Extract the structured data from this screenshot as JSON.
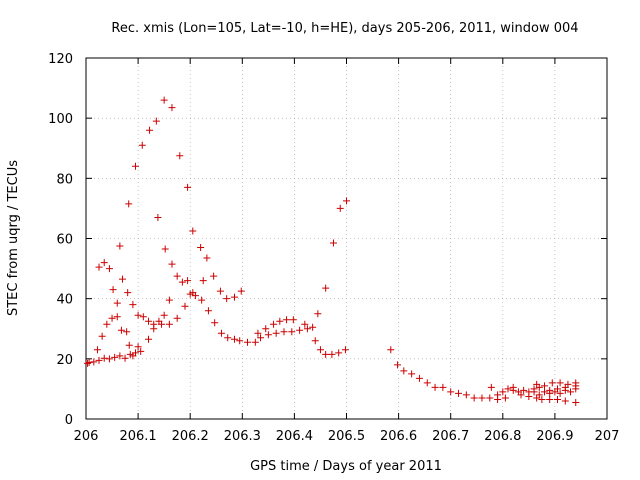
{
  "chart_data": {
    "type": "scatter",
    "title": "Rec. xmis (Lon=105, Lat=-10, h=HE), days 205-206, 2011, window 004",
    "xlabel": "GPS time / Days of year 2011",
    "ylabel": "STEC from uqrg / TECUs",
    "xlim": [
      206,
      207
    ],
    "ylim": [
      0,
      120
    ],
    "xticks": [
      206,
      206.1,
      206.2,
      206.3,
      206.4,
      206.5,
      206.6,
      206.7,
      206.8,
      206.9,
      207
    ],
    "xtick_labels": [
      "206",
      "206.1",
      "206.2",
      "206.3",
      "206.4",
      "206.5",
      "206.6",
      "206.7",
      "206.8",
      "206.9",
      "207"
    ],
    "yticks": [
      0,
      20,
      40,
      60,
      80,
      100,
      120
    ],
    "ytick_labels": [
      "0",
      "20",
      "40",
      "60",
      "80",
      "100",
      "120"
    ],
    "grid": true,
    "marker": "+",
    "color": "#cc0000",
    "points": [
      [
        206.003,
        18.5
      ],
      [
        206.006,
        18.8
      ],
      [
        206.015,
        19.0
      ],
      [
        206.025,
        19.5
      ],
      [
        206.035,
        20.2
      ],
      [
        206.045,
        20.0
      ],
      [
        206.055,
        20.5
      ],
      [
        206.065,
        21.0
      ],
      [
        206.075,
        20.2
      ],
      [
        206.085,
        21.5
      ],
      [
        206.095,
        22.0
      ],
      [
        206.105,
        22.5
      ],
      [
        206.022,
        23.0
      ],
      [
        206.031,
        27.5
      ],
      [
        206.04,
        31.5
      ],
      [
        206.05,
        33.5
      ],
      [
        206.06,
        38.5
      ],
      [
        206.07,
        46.5
      ],
      [
        206.08,
        42.0
      ],
      [
        206.09,
        38.0
      ],
      [
        206.1,
        34.5
      ],
      [
        206.11,
        34.0
      ],
      [
        206.12,
        32.5
      ],
      [
        206.13,
        31.5
      ],
      [
        206.14,
        32.5
      ],
      [
        206.15,
        34.5
      ],
      [
        206.16,
        31.5
      ],
      [
        206.025,
        50.5
      ],
      [
        206.035,
        52.0
      ],
      [
        206.045,
        50.0
      ],
      [
        206.052,
        43.0
      ],
      [
        206.06,
        34.0
      ],
      [
        206.068,
        29.5
      ],
      [
        206.078,
        29.0
      ],
      [
        206.083,
        24.5
      ],
      [
        206.09,
        21.0
      ],
      [
        206.1,
        24.0
      ],
      [
        206.065,
        57.5
      ],
      [
        206.082,
        71.5
      ],
      [
        206.095,
        84.0
      ],
      [
        206.108,
        91.0
      ],
      [
        206.122,
        96.0
      ],
      [
        206.135,
        99.0
      ],
      [
        206.15,
        106.0
      ],
      [
        206.165,
        103.5
      ],
      [
        206.18,
        87.5
      ],
      [
        206.195,
        77.0
      ],
      [
        206.205,
        62.5
      ],
      [
        206.22,
        57.0
      ],
      [
        206.232,
        53.5
      ],
      [
        206.245,
        47.5
      ],
      [
        206.258,
        42.5
      ],
      [
        206.138,
        67.0
      ],
      [
        206.152,
        56.5
      ],
      [
        206.165,
        51.5
      ],
      [
        206.175,
        47.5
      ],
      [
        206.185,
        45.5
      ],
      [
        206.195,
        46.0
      ],
      [
        206.205,
        42.0
      ],
      [
        206.222,
        39.5
      ],
      [
        206.235,
        36.0
      ],
      [
        206.247,
        32.0
      ],
      [
        206.26,
        28.5
      ],
      [
        206.272,
        27.0
      ],
      [
        206.285,
        26.5
      ],
      [
        206.12,
        26.5
      ],
      [
        206.13,
        30.0
      ],
      [
        206.145,
        31.5
      ],
      [
        206.16,
        39.5
      ],
      [
        206.175,
        33.5
      ],
      [
        206.19,
        37.5
      ],
      [
        206.2,
        41.5
      ],
      [
        206.21,
        41.0
      ],
      [
        206.225,
        46.0
      ],
      [
        206.27,
        40.0
      ],
      [
        206.285,
        40.5
      ],
      [
        206.298,
        42.5
      ],
      [
        206.295,
        26.0
      ],
      [
        206.31,
        25.5
      ],
      [
        206.325,
        25.5
      ],
      [
        206.335,
        27.0
      ],
      [
        206.35,
        28.0
      ],
      [
        206.365,
        28.5
      ],
      [
        206.38,
        29.0
      ],
      [
        206.395,
        29.0
      ],
      [
        206.41,
        29.5
      ],
      [
        206.425,
        30.0
      ],
      [
        206.33,
        28.5
      ],
      [
        206.345,
        30.0
      ],
      [
        206.36,
        31.5
      ],
      [
        206.372,
        32.5
      ],
      [
        206.385,
        33.0
      ],
      [
        206.398,
        33.0
      ],
      [
        206.42,
        31.5
      ],
      [
        206.435,
        30.5
      ],
      [
        206.445,
        35.0
      ],
      [
        206.44,
        26.0
      ],
      [
        206.45,
        23.0
      ],
      [
        206.46,
        21.5
      ],
      [
        206.472,
        21.5
      ],
      [
        206.485,
        22.0
      ],
      [
        206.498,
        23.0
      ],
      [
        206.46,
        43.5
      ],
      [
        206.475,
        58.5
      ],
      [
        206.488,
        70.0
      ],
      [
        206.5,
        72.5
      ],
      [
        206.585,
        23.0
      ],
      [
        206.598,
        18.0
      ],
      [
        206.61,
        16.0
      ],
      [
        206.625,
        15.0
      ],
      [
        206.64,
        13.5
      ],
      [
        206.655,
        12.0
      ],
      [
        206.67,
        10.5
      ],
      [
        206.685,
        10.5
      ],
      [
        206.7,
        9.0
      ],
      [
        206.715,
        8.5
      ],
      [
        206.73,
        8.0
      ],
      [
        206.745,
        7.0
      ],
      [
        206.76,
        7.0
      ],
      [
        206.775,
        7.0
      ],
      [
        206.778,
        10.5
      ],
      [
        206.79,
        8.0
      ],
      [
        206.8,
        9.0
      ],
      [
        206.81,
        10.0
      ],
      [
        206.82,
        9.5
      ],
      [
        206.83,
        9.0
      ],
      [
        206.84,
        9.5
      ],
      [
        206.85,
        9.0
      ],
      [
        206.86,
        10.0
      ],
      [
        206.87,
        10.5
      ],
      [
        206.88,
        9.0
      ],
      [
        206.89,
        9.5
      ],
      [
        206.9,
        9.0
      ],
      [
        206.91,
        8.5
      ],
      [
        206.92,
        9.5
      ],
      [
        206.93,
        9.0
      ],
      [
        206.94,
        10.0
      ],
      [
        206.79,
        6.5
      ],
      [
        206.805,
        7.0
      ],
      [
        206.82,
        10.5
      ],
      [
        206.835,
        8.0
      ],
      [
        206.85,
        7.5
      ],
      [
        206.865,
        7.0
      ],
      [
        206.875,
        6.5
      ],
      [
        206.89,
        6.5
      ],
      [
        206.905,
        6.5
      ],
      [
        206.92,
        6.0
      ],
      [
        206.94,
        5.5
      ],
      [
        206.865,
        11.5
      ],
      [
        206.88,
        11.0
      ],
      [
        206.895,
        12.0
      ],
      [
        206.91,
        12.0
      ],
      [
        206.925,
        11.5
      ],
      [
        206.94,
        12.0
      ],
      [
        206.86,
        9.0
      ],
      [
        206.87,
        8.0
      ],
      [
        206.89,
        8.5
      ],
      [
        206.905,
        10.0
      ],
      [
        206.92,
        10.5
      ],
      [
        206.94,
        11.0
      ]
    ]
  }
}
